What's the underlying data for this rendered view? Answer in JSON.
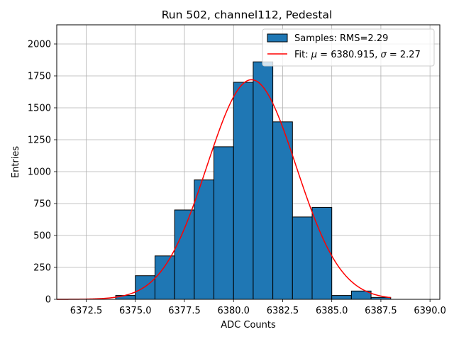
{
  "chart_data": {
    "type": "bar",
    "title": "Run 502, channel112, Pedestal",
    "xlabel": "ADC Counts",
    "ylabel": "Entries",
    "xlim": [
      6371.0,
      6390.5
    ],
    "ylim": [
      0,
      2150
    ],
    "xticks": [
      6372.5,
      6375.0,
      6377.5,
      6380.0,
      6382.5,
      6385.0,
      6387.5,
      6390.0
    ],
    "xtick_labels": [
      "6372.5",
      "6375.0",
      "6377.5",
      "6380.0",
      "6382.5",
      "6385.0",
      "6387.5",
      "6390.0"
    ],
    "yticks": [
      0,
      250,
      500,
      750,
      1000,
      1250,
      1500,
      1750,
      2000
    ],
    "ytick_labels": [
      "0",
      "250",
      "500",
      "750",
      "1000",
      "1250",
      "1500",
      "1750",
      "2000"
    ],
    "grid": true,
    "legend_position": "top-right",
    "histogram": {
      "name": "Samples: RMS=2.29",
      "color": "#1f77b4",
      "edge_color": "#000000",
      "bins": [
        {
          "x0": 6374,
          "x1": 6375,
          "count": 30
        },
        {
          "x0": 6375,
          "x1": 6376,
          "count": 185
        },
        {
          "x0": 6376,
          "x1": 6377,
          "count": 340
        },
        {
          "x0": 6377,
          "x1": 6378,
          "count": 700
        },
        {
          "x0": 6378,
          "x1": 6379,
          "count": 935
        },
        {
          "x0": 6379,
          "x1": 6380,
          "count": 1195
        },
        {
          "x0": 6380,
          "x1": 6381,
          "count": 1700
        },
        {
          "x0": 6381,
          "x1": 6382,
          "count": 1860
        },
        {
          "x0": 6382,
          "x1": 6383,
          "count": 1390
        },
        {
          "x0": 6383,
          "x1": 6384,
          "count": 645
        },
        {
          "x0": 6384,
          "x1": 6385,
          "count": 720
        },
        {
          "x0": 6385,
          "x1": 6386,
          "count": 30
        },
        {
          "x0": 6386,
          "x1": 6387,
          "count": 65
        },
        {
          "x0": 6387,
          "x1": 6388,
          "count": 15
        }
      ]
    },
    "fit": {
      "name_prefix": "Fit: ",
      "mu_label": "μ",
      "mu_text": " = 6380.915, ",
      "sigma_label": "σ",
      "sigma_text": " = 2.27",
      "color": "#ff0000",
      "mu": 6380.915,
      "sigma": 2.27,
      "amplitude": 1720,
      "x_range": [
        6371,
        6388
      ]
    }
  }
}
